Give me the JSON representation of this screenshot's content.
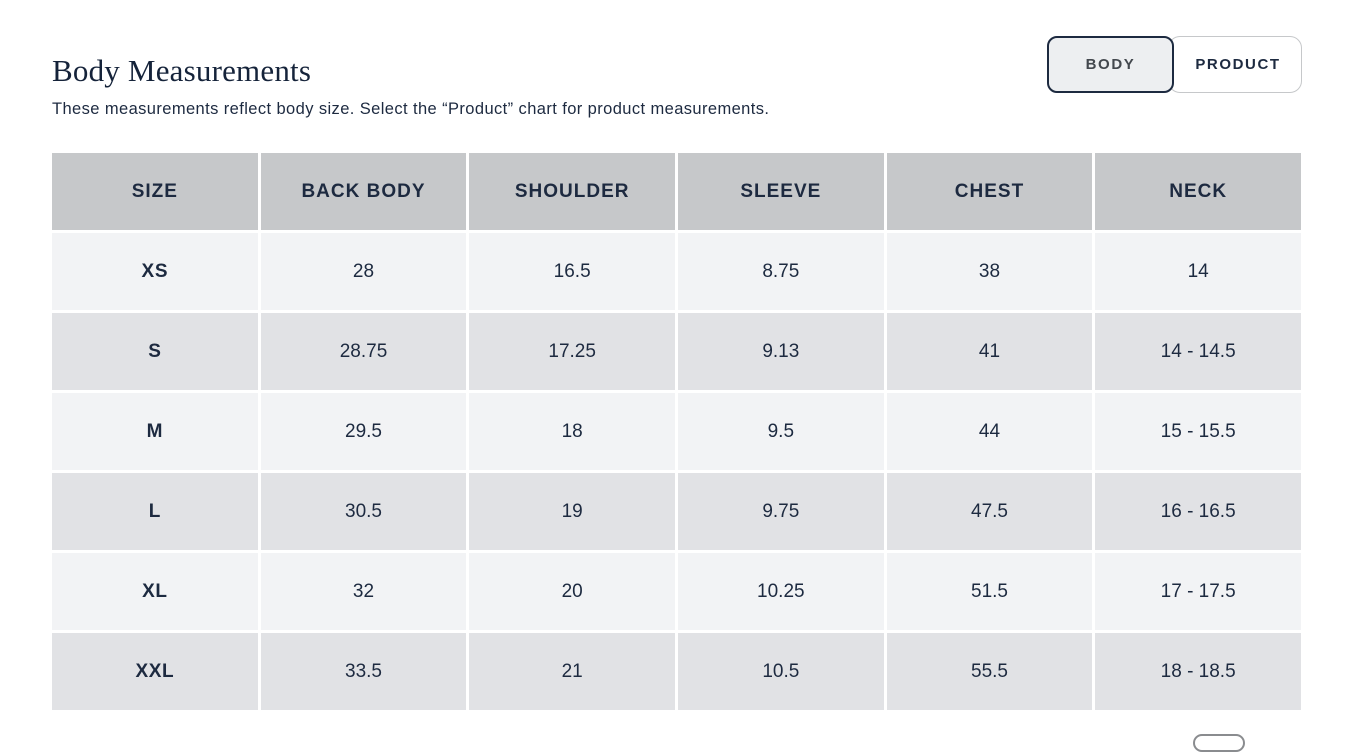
{
  "page": {
    "title": "Body Measurements",
    "subtitle": "These measurements reflect body size. Select the “Product” chart for product measurements."
  },
  "toggle": {
    "body_label": "BODY",
    "product_label": "PRODUCT",
    "selected": "BODY"
  },
  "table": {
    "columns": [
      "SIZE",
      "BACK BODY",
      "SHOULDER",
      "SLEEVE",
      "CHEST",
      "NECK"
    ],
    "rows": [
      {
        "size": "XS",
        "values": [
          "28",
          "16.5",
          "8.75",
          "38",
          "14"
        ]
      },
      {
        "size": "S",
        "values": [
          "28.75",
          "17.25",
          "9.13",
          "41",
          "14 - 14.5"
        ]
      },
      {
        "size": "M",
        "values": [
          "29.5",
          "18",
          "9.5",
          "44",
          "15 - 15.5"
        ]
      },
      {
        "size": "L",
        "values": [
          "30.5",
          "19",
          "9.75",
          "47.5",
          "16 - 16.5"
        ]
      },
      {
        "size": "XL",
        "values": [
          "32",
          "20",
          "10.25",
          "51.5",
          "17 - 17.5"
        ]
      },
      {
        "size": "XXL",
        "values": [
          "33.5",
          "21",
          "10.5",
          "55.5",
          "18 - 18.5"
        ]
      }
    ]
  },
  "colors": {
    "accent_navy": "#1d2a40",
    "title_navy": "#15233a",
    "table_header_bg": "#c6c8ca",
    "row_light": "#f2f3f5",
    "row_dark": "#e1e2e5",
    "selected_chip_bg": "#edeff1",
    "chip_border": "#c6c8ca",
    "body_label_color": "#43484e"
  }
}
